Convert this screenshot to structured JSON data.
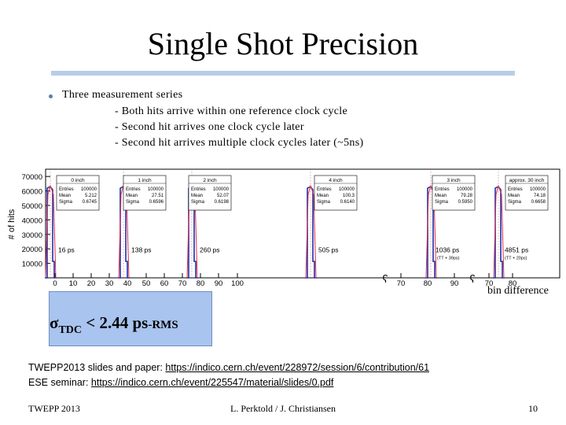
{
  "slide": {
    "title": "Single Shot Precision",
    "bullet": "Three measurement series",
    "subbullets": [
      "- Both hits arrive within one reference clock cycle",
      "- Second hit arrives one clock cycle later",
      "- Second hit arrives multiple clock cycles later (~5ns)"
    ],
    "bin_difference_label": "bin difference",
    "sigma": {
      "symbol": "σ",
      "sub": "TDC",
      "rest": " <  2.44 ps",
      "unit": "-RMS"
    },
    "links": [
      {
        "label": "TWEPP2013 slides and paper: ",
        "url": "https://indico.cern.ch/event/228972/session/6/contribution/61"
      },
      {
        "label": "ESE seminar: ",
        "url": "https://indico.cern.ch/event/225547/material/slides/0.pdf"
      }
    ],
    "footer": {
      "left": "TWEPP 2013",
      "center": "L. Perktold / J. Christiansen",
      "right": "10"
    }
  },
  "chart_data": {
    "type": "histogram",
    "ylabel": "# of hits",
    "y_ticks": [
      10000,
      20000,
      30000,
      40000,
      50000,
      60000,
      70000
    ],
    "ylim": [
      0,
      75000
    ],
    "x_tick_labels": [
      "0",
      "10",
      "20",
      "30",
      "40",
      "50",
      "60",
      "70",
      "80",
      "90",
      "100",
      "70",
      "80",
      "90",
      "70",
      "80"
    ],
    "colors": {
      "measured": "#1f2fa8",
      "fit": "#e0304a",
      "axis": "#000000"
    },
    "peaks": [
      {
        "x": 5,
        "height": 63000,
        "name": "0 inch",
        "entries": "100000",
        "mean": "5.212",
        "sigma": "0.6745",
        "annotation": "16 ps"
      },
      {
        "x": 28,
        "height": 63000,
        "name": "1 inch",
        "entries": "100000",
        "mean": "27.51",
        "sigma": "0.6596",
        "annotation": "138 ps"
      },
      {
        "x": 52,
        "height": 63000,
        "name": "2 inch",
        "entries": "100000",
        "mean": "52.07",
        "sigma": "0.6198",
        "annotation": "260 ps"
      },
      {
        "x": 100,
        "height": 63000,
        "name": "4 inch",
        "entries": "100000",
        "mean": "100.3",
        "sigma": "0.6140",
        "annotation": "505 ps"
      },
      {
        "x": 79,
        "height": 63000,
        "name": "3 inch",
        "entries": "100000",
        "mean": "79.28",
        "sigma": "0.5950",
        "annotation": "1036 ps",
        "note": "(TT + 39ps)"
      },
      {
        "x": 74,
        "height": 63000,
        "name": "approx. 30 inch",
        "entries": "100000",
        "mean": "74.18",
        "sigma": "0.6658",
        "annotation": "4851 ps",
        "note": "(TT + 20ps)"
      }
    ]
  }
}
